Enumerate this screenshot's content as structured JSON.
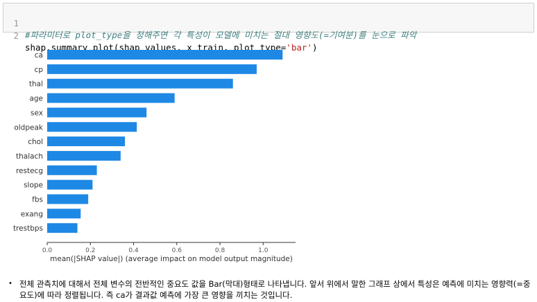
{
  "code_cell": {
    "line_numbers": [
      "1",
      "2"
    ],
    "comment": "#파라미터로 plot_type을 정해주면 각 특성이 모델에 미치는 절대 영향도(=기여분)를 눈으로 파악",
    "code_before_string": "shap.summary_plot(shap_values, x_train, plot_type=",
    "string_literal": "'bar'",
    "code_after_string": ")"
  },
  "chart_data": {
    "type": "bar",
    "orientation": "horizontal",
    "categories": [
      "ca",
      "cp",
      "thal",
      "age",
      "sex",
      "oldpeak",
      "chol",
      "thalach",
      "restecg",
      "slope",
      "fbs",
      "exang",
      "trestbps"
    ],
    "values": [
      1.09,
      0.97,
      0.86,
      0.59,
      0.46,
      0.415,
      0.36,
      0.34,
      0.23,
      0.21,
      0.19,
      0.155,
      0.14
    ],
    "xlabel": "mean(|SHAP value|) (average impact on model output magnitude)",
    "xlim": [
      0,
      1.15
    ],
    "xticks": [
      "0.0",
      "0.2",
      "0.4",
      "0.6",
      "0.8",
      "1.0"
    ],
    "bar_color": "#1e88e5",
    "grid": false
  },
  "note": {
    "bullet": "•",
    "text": "전체 관측치에 대해서 전체 변수의 전반적인 중요도 값을 Bar(막대)형태로 나타냅니다. 앞서 위에서 말한 그래프 상에서 특성은 예측에 미치는 영향력(=중요도)에 따라 정렬됩니다. 즉 ca가 결과값 예측에 가장 큰 영향을 끼치는 것입니다."
  }
}
